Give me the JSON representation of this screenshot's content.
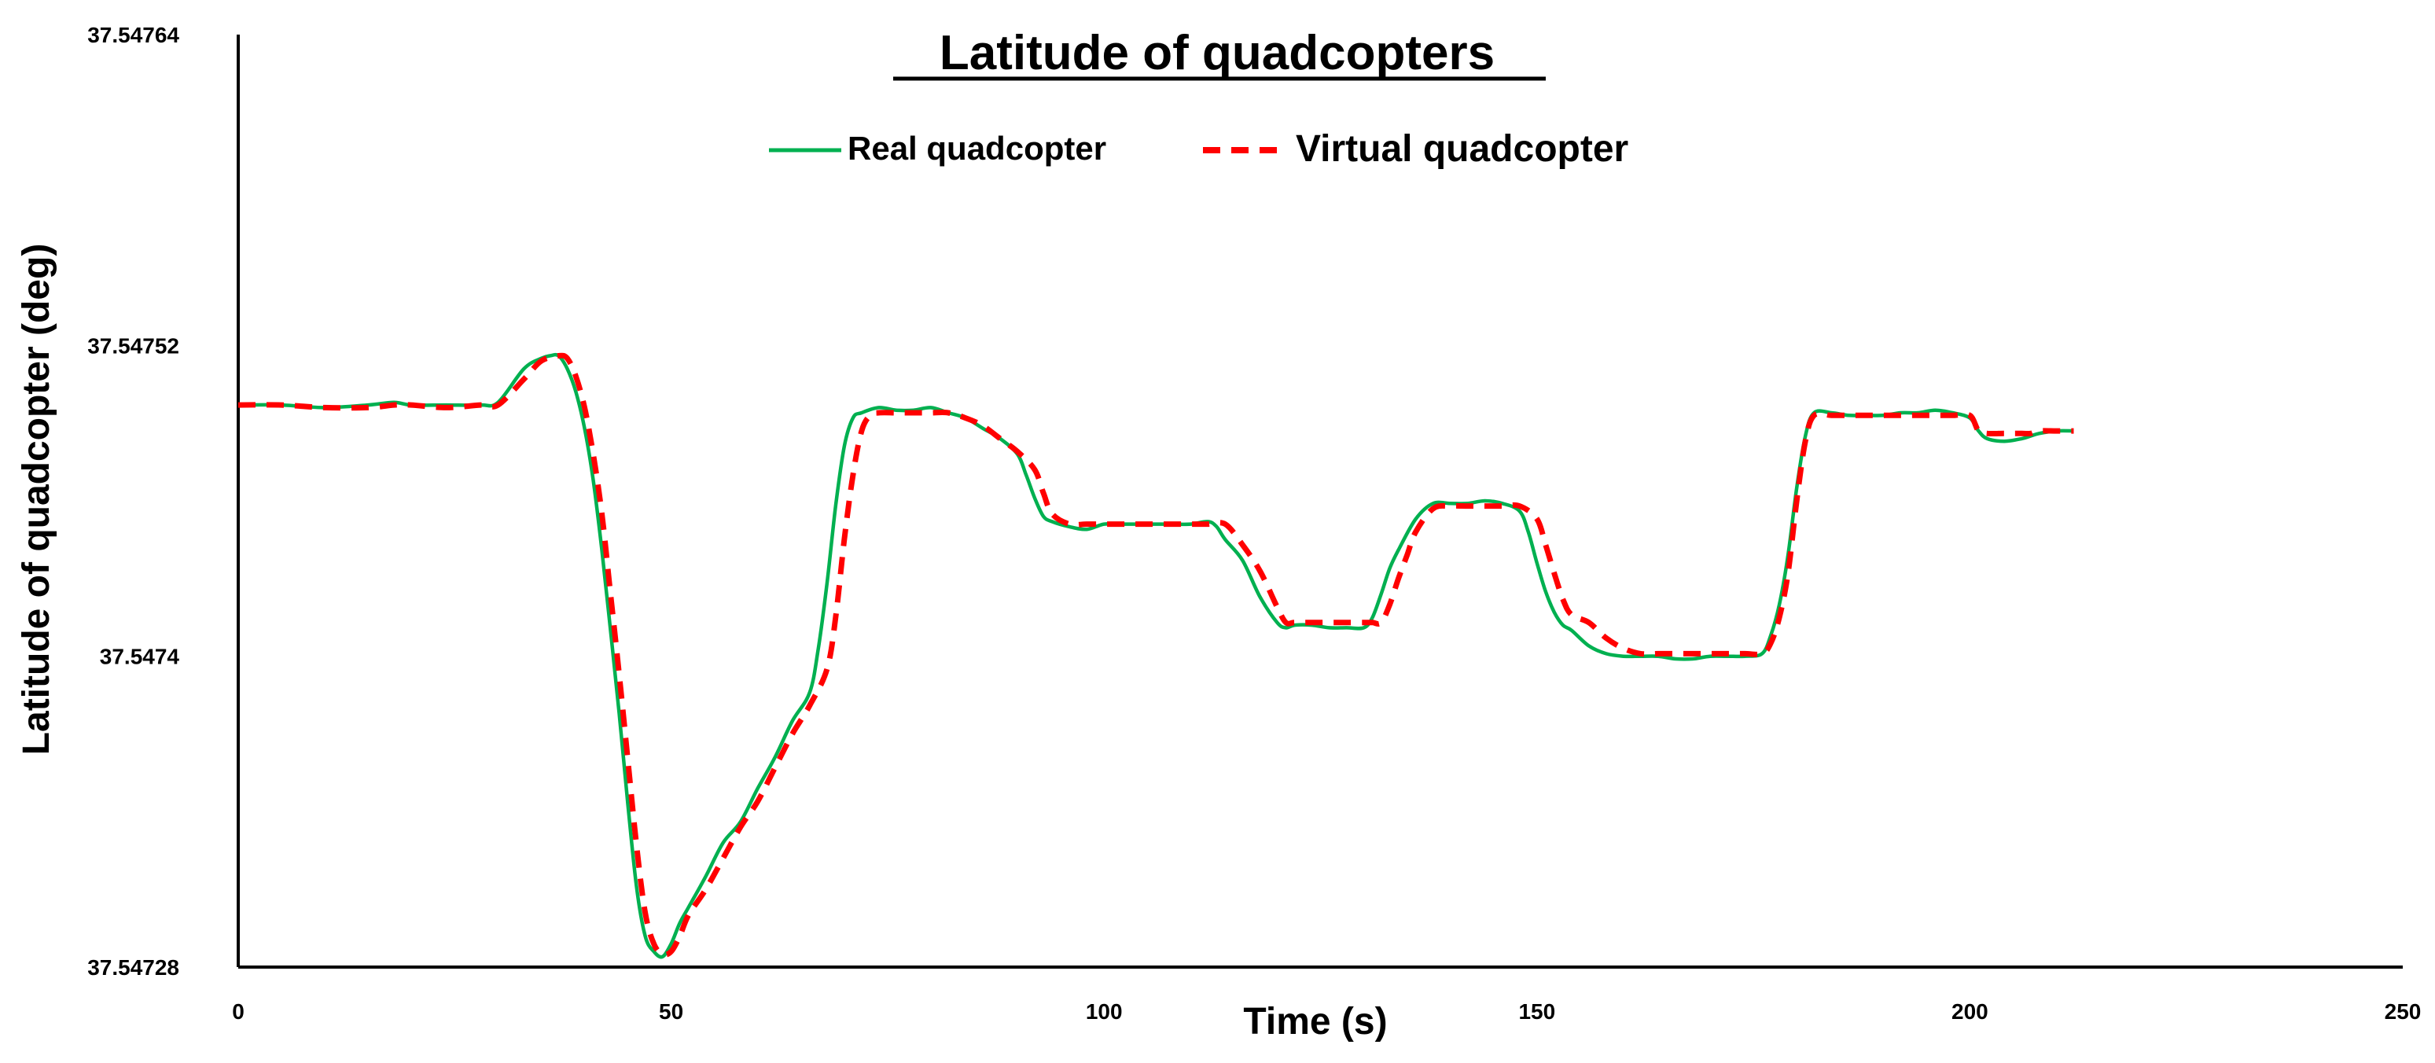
{
  "chart_data": {
    "type": "line",
    "title": "Latitude of quadcopters",
    "xlabel": "Time (s)",
    "ylabel": "Latitude of quadcopter (deg)",
    "xlim": [
      0,
      250
    ],
    "ylim": [
      37.54728,
      37.54764
    ],
    "x_ticks": [
      "0",
      "50",
      "100",
      "150",
      "200",
      "250"
    ],
    "y_ticks": [
      "37.54728",
      "37.5474",
      "37.54752",
      "37.54764"
    ],
    "grid": false,
    "legend_position": "top-center",
    "series": [
      {
        "name": "Real quadcopter",
        "color": "#00b050",
        "style": "solid",
        "x": [
          0,
          5,
          10,
          15,
          18,
          20,
          24,
          28,
          30,
          33,
          35,
          36,
          37,
          38,
          39,
          40,
          41,
          42,
          43,
          44,
          45,
          46,
          47,
          48,
          49,
          50,
          51,
          52,
          54,
          56,
          58,
          60,
          62,
          64,
          66,
          67,
          68,
          69,
          70,
          71,
          72,
          74,
          76,
          78,
          80,
          82,
          84,
          86,
          88,
          90,
          91,
          92,
          93,
          94,
          96,
          98,
          100,
          102,
          104,
          106,
          108,
          110,
          112,
          113,
          114,
          116,
          118,
          120,
          121,
          122,
          124,
          126,
          128,
          130,
          131,
          132,
          133,
          134,
          136,
          138,
          140,
          142,
          144,
          146,
          148,
          149,
          150,
          151,
          152,
          153,
          154,
          156,
          158,
          160,
          162,
          164,
          166,
          168,
          170,
          172,
          174,
          176,
          177,
          178,
          179,
          180,
          181,
          182,
          184,
          186,
          188,
          190,
          192,
          194,
          196,
          198,
          200,
          201,
          202,
          204,
          206,
          207,
          208,
          210,
          212
        ],
        "y": [
          37.547497,
          37.547497,
          37.547496,
          37.547497,
          37.547498,
          37.547497,
          37.547497,
          37.547497,
          37.547498,
          37.547511,
          37.547515,
          37.547516,
          37.547516,
          37.547511,
          37.547502,
          37.547488,
          37.547468,
          37.547441,
          37.54741,
          37.547378,
          37.547343,
          37.547311,
          37.547292,
          37.547286,
          37.547284,
          37.547289,
          37.547297,
          37.547303,
          37.547315,
          37.547328,
          37.547336,
          37.547349,
          37.547361,
          37.547375,
          37.547386,
          37.547403,
          37.547428,
          37.547458,
          37.547481,
          37.547492,
          37.547494,
          37.547496,
          37.547495,
          37.547495,
          37.547496,
          37.547494,
          37.547492,
          37.547488,
          37.547484,
          37.547478,
          37.54747,
          37.547461,
          37.547454,
          37.547452,
          37.54745,
          37.547449,
          37.547451,
          37.547451,
          37.547451,
          37.547451,
          37.547451,
          37.547451,
          37.547452,
          37.54745,
          37.547445,
          37.547437,
          37.547423,
          37.547413,
          37.547411,
          37.547412,
          37.547412,
          37.547411,
          37.547411,
          37.547411,
          37.547415,
          37.547424,
          37.547434,
          37.547441,
          37.547453,
          37.547459,
          37.547459,
          37.547459,
          37.54746,
          37.547459,
          37.547456,
          37.547448,
          37.547436,
          37.547425,
          37.547417,
          37.547412,
          37.54741,
          37.547404,
          37.547401,
          37.5474,
          37.5474,
          37.5474,
          37.547399,
          37.547399,
          37.5474,
          37.5474,
          37.5474,
          37.547401,
          37.547408,
          37.54742,
          37.547439,
          37.547465,
          37.547485,
          37.547494,
          37.547494,
          37.547493,
          37.547493,
          37.547493,
          37.547494,
          37.547494,
          37.547495,
          37.547494,
          37.547492,
          37.547487,
          37.547484,
          37.547483,
          37.547484,
          37.547485,
          37.547486,
          37.547487,
          37.547487
        ]
      },
      {
        "name": "Virtual quadcopter",
        "color": "#ff0000",
        "style": "dashed",
        "x": [
          0,
          5,
          10,
          15,
          18,
          20,
          24,
          28,
          30,
          33,
          35,
          37,
          38,
          39,
          40,
          41,
          42,
          43,
          44,
          45,
          46,
          47,
          48,
          49,
          50,
          51,
          52,
          54,
          56,
          58,
          60,
          62,
          64,
          66,
          68,
          69,
          70,
          71,
          72,
          73,
          74,
          76,
          78,
          80,
          82,
          84,
          86,
          88,
          90,
          92,
          93,
          94,
          96,
          98,
          100,
          102,
          104,
          106,
          108,
          110,
          112,
          114,
          116,
          118,
          120,
          121,
          122,
          124,
          126,
          128,
          130,
          131,
          132,
          133,
          134,
          135,
          136,
          138,
          140,
          142,
          144,
          146,
          148,
          150,
          151,
          152,
          153,
          154,
          156,
          158,
          160,
          162,
          164,
          166,
          168,
          170,
          172,
          174,
          176,
          177,
          178,
          179,
          180,
          181,
          182,
          184,
          186,
          188,
          190,
          192,
          194,
          196,
          198,
          200,
          201,
          202,
          204,
          206,
          207,
          208,
          210,
          212
        ],
        "y": [
          37.547497,
          37.547497,
          37.547496,
          37.547496,
          37.547497,
          37.547497,
          37.547496,
          37.547497,
          37.547497,
          37.547507,
          37.547514,
          37.547516,
          37.547515,
          37.547508,
          37.547496,
          37.547478,
          37.547455,
          37.547424,
          37.547393,
          37.54736,
          37.547327,
          37.547301,
          37.547289,
          37.547285,
          37.547286,
          37.547292,
          37.5473,
          37.54731,
          37.547322,
          37.547334,
          37.547344,
          37.547357,
          37.54737,
          37.547381,
          37.547395,
          37.547415,
          37.547445,
          37.54747,
          37.547487,
          37.547493,
          37.547494,
          37.547494,
          37.547494,
          37.547494,
          37.547494,
          37.547492,
          37.547489,
          37.547484,
          37.547479,
          37.547472,
          37.547463,
          37.547455,
          37.547451,
          37.547451,
          37.547451,
          37.547451,
          37.547451,
          37.547451,
          37.547451,
          37.547451,
          37.547451,
          37.547451,
          37.547443,
          37.547433,
          37.547419,
          37.547413,
          37.547413,
          37.547413,
          37.547413,
          37.547413,
          37.547413,
          37.547413,
          37.547413,
          37.54742,
          37.54743,
          37.547439,
          37.547448,
          37.547457,
          37.547458,
          37.547458,
          37.547458,
          37.547458,
          37.547458,
          37.547453,
          37.547443,
          37.547432,
          37.547422,
          37.547416,
          37.547413,
          37.547407,
          37.547403,
          37.547401,
          37.547401,
          37.547401,
          37.547401,
          37.547401,
          37.547401,
          37.547401,
          37.547401,
          37.547405,
          37.547415,
          37.547432,
          37.54746,
          37.547483,
          37.547493,
          37.547493,
          37.547493,
          37.547493,
          37.547493,
          37.547493,
          37.547493,
          37.547493,
          37.547493,
          37.547493,
          37.547487,
          37.547486,
          37.547486,
          37.547486,
          37.547486,
          37.547487,
          37.547487,
          37.547487
        ]
      }
    ]
  }
}
